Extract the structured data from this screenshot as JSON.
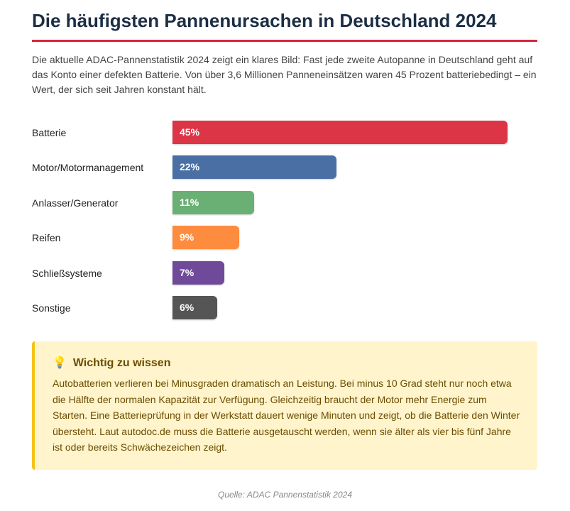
{
  "title": "Die häufigsten Pannenursachen in Deutschland 2024",
  "intro": "Die aktuelle ADAC-Pannenstatistik 2024 zeigt ein klares Bild: Fast jede zweite Autopanne in Deutschland geht auf das Konto einer defekten Batterie. Von über 3,6 Millionen Panneneinsätzen waren 45 Prozent batteriebedingt – ein Wert, der sich seit Jahren konstant hält.",
  "chart_data": {
    "type": "bar",
    "orientation": "horizontal",
    "categories": [
      "Batterie",
      "Motor/Motormanagement",
      "Anlasser/Generator",
      "Reifen",
      "Schließsysteme",
      "Sonstige"
    ],
    "values": [
      45,
      22,
      11,
      9,
      7,
      6
    ],
    "value_labels": [
      "45%",
      "22%",
      "11%",
      "9%",
      "7%",
      "6%"
    ],
    "colors": [
      "#dc3545",
      "#4a6fa5",
      "#6aaf74",
      "#fd8c3e",
      "#6f4a9b",
      "#555555"
    ],
    "unit": "%"
  },
  "note": {
    "icon": "lightbulb-icon",
    "title": "Wichtig zu wissen",
    "text": "Autobatterien verlieren bei Minusgraden dramatisch an Leistung. Bei minus 10 Grad steht nur noch etwa die Hälfte der normalen Kapazität zur Verfügung. Gleichzeitig braucht der Motor mehr Energie zum Starten. Eine Batterieprüfung in der Werkstatt dauert wenige Minuten und zeigt, ob die Batterie den Winter übersteht. Laut autodoc.de muss die Batterie ausgetauscht werden, wenn sie älter als vier bis fünf Jahre ist oder bereits Schwächezeichen zeigt."
  },
  "source": "Quelle: ADAC Pannenstatistik 2024"
}
